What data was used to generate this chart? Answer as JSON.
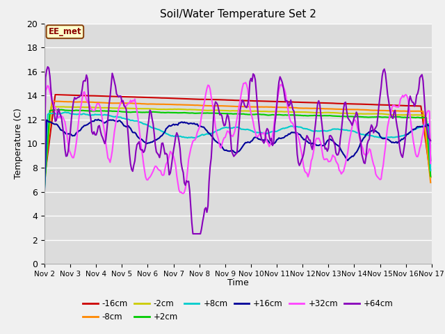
{
  "title": "Soil/Water Temperature Set 2",
  "xlabel": "Time",
  "ylabel": "Temperature (C)",
  "ylim": [
    0,
    20
  ],
  "background_color": "#dcdcdc",
  "fig_bg": "#f0f0f0",
  "annotation_text": "EE_met",
  "annotation_bg": "#ffffcc",
  "annotation_border": "#8b4513",
  "xtick_labels": [
    "Nov 2",
    "Nov 3",
    "Nov 4",
    "Nov 5",
    "Nov 6",
    "Nov 7",
    "Nov 8",
    "Nov 9",
    "Nov 10",
    "Nov 11",
    "Nov 12",
    "Nov 13",
    "Nov 14",
    "Nov 15",
    "Nov 16",
    "Nov 17"
  ],
  "ytick_labels": [
    0,
    2,
    4,
    6,
    8,
    10,
    12,
    14,
    16,
    18,
    20
  ],
  "series_order": [
    "-16cm",
    "-8cm",
    "-2cm",
    "+2cm",
    "+8cm",
    "+16cm",
    "+32cm",
    "+64cm"
  ],
  "series": {
    "-16cm": {
      "color": "#cc0000",
      "lw": 1.5
    },
    "-8cm": {
      "color": "#ff8800",
      "lw": 1.5
    },
    "-2cm": {
      "color": "#cccc00",
      "lw": 1.5
    },
    "+2cm": {
      "color": "#00cc00",
      "lw": 1.5
    },
    "+8cm": {
      "color": "#00cccc",
      "lw": 1.5
    },
    "+16cm": {
      "color": "#000099",
      "lw": 1.5
    },
    "+32cm": {
      "color": "#ff44ff",
      "lw": 1.5
    },
    "+64cm": {
      "color": "#8800bb",
      "lw": 1.5
    }
  },
  "legend_row1": [
    "-16cm",
    "-8cm",
    "-2cm",
    "+2cm",
    "+8cm",
    "+16cm"
  ],
  "legend_row2": [
    "+32cm",
    "+64cm"
  ]
}
